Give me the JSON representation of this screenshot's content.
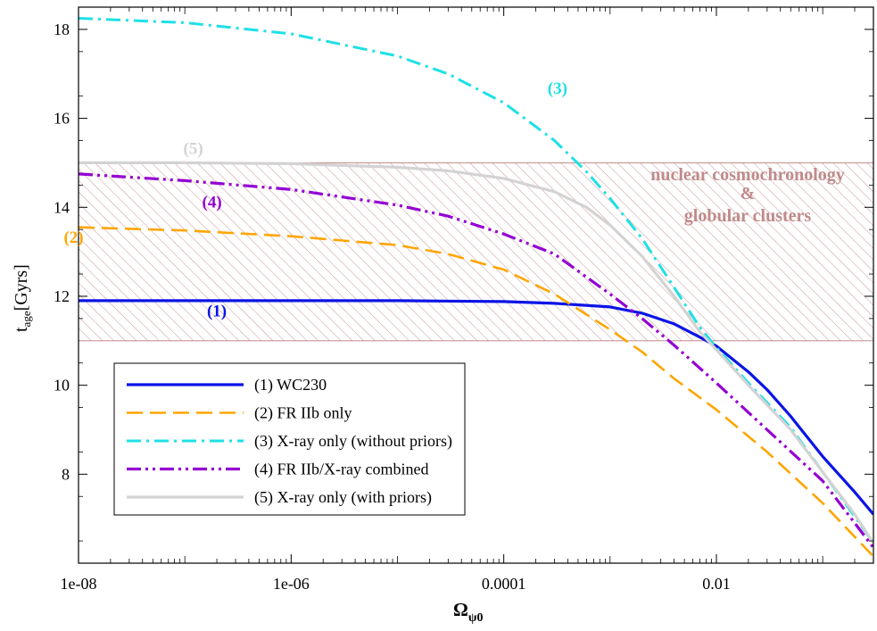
{
  "chart_data": {
    "type": "line",
    "x_scale": "log",
    "xlim": [
      1e-08,
      0.3
    ],
    "ylim": [
      6.0,
      18.5
    ],
    "xlabel": {
      "main": "Ω",
      "sub": "ψ0"
    },
    "ylabel": {
      "main": "t",
      "sub": "age",
      "unit": "[Gyrs]"
    },
    "x_ticks": [
      {
        "value": 1e-08,
        "label": "1e-08"
      },
      {
        "value": 1e-06,
        "label": "1e-06"
      },
      {
        "value": 0.0001,
        "label": "0.0001"
      },
      {
        "value": 0.01,
        "label": "0.01"
      }
    ],
    "y_ticks": [
      8,
      10,
      12,
      14,
      16,
      18
    ],
    "grid": false,
    "band": {
      "y_range": [
        11,
        15
      ],
      "label_lines": [
        "nuclear cosmochronology",
        "&",
        "globular clusters"
      ],
      "color": "#c08a8a"
    },
    "legend": {
      "position": "bottom-left",
      "entries": [
        {
          "label": "(1) WC230",
          "color": "#0a14e6",
          "dash": "solid"
        },
        {
          "label": "(2) FR IIb only",
          "color": "#ffa500",
          "dash": "dash"
        },
        {
          "label": "(3) X-ray only (without priors)",
          "color": "#1ee0e6",
          "dash": "dashdot"
        },
        {
          "label": "(4) FR IIb/X-ray combined",
          "color": "#9400d3",
          "dash": "dashdotdot"
        },
        {
          "label": "(5) X-ray only (with priors)",
          "color": "#d3d3d3",
          "dash": "solid"
        }
      ]
    },
    "series": [
      {
        "curve_label": "(1)",
        "label_at": [
          2e-07,
          11.55
        ],
        "color": "#0a14e6",
        "dash": "solid",
        "points": [
          [
            1e-08,
            11.9
          ],
          [
            1e-06,
            11.9
          ],
          [
            1e-05,
            11.9
          ],
          [
            0.0001,
            11.88
          ],
          [
            0.0003,
            11.84
          ],
          [
            0.001,
            11.76
          ],
          [
            0.002,
            11.62
          ],
          [
            0.004,
            11.38
          ],
          [
            0.007,
            11.08
          ],
          [
            0.01,
            10.88
          ],
          [
            0.02,
            10.3
          ],
          [
            0.03,
            9.9
          ],
          [
            0.05,
            9.3
          ],
          [
            0.1,
            8.4
          ],
          [
            0.2,
            7.6
          ],
          [
            0.3,
            7.1
          ]
        ]
      },
      {
        "curve_label": "(2)",
        "label_at": [
          9e-09,
          13.2
        ],
        "color": "#ffa500",
        "dash": "dash",
        "points": [
          [
            1e-08,
            13.55
          ],
          [
            1e-07,
            13.48
          ],
          [
            1e-06,
            13.35
          ],
          [
            1e-05,
            13.15
          ],
          [
            3e-05,
            12.95
          ],
          [
            0.0001,
            12.6
          ],
          [
            0.0003,
            12.05
          ],
          [
            0.001,
            11.25
          ],
          [
            0.002,
            10.75
          ],
          [
            0.004,
            10.15
          ],
          [
            0.01,
            9.45
          ],
          [
            0.03,
            8.5
          ],
          [
            0.1,
            7.35
          ],
          [
            0.3,
            6.15
          ]
        ]
      },
      {
        "curve_label": "(3)",
        "label_at": [
          0.00032,
          16.55
        ],
        "color": "#1ee0e6",
        "dash": "dashdot",
        "points": [
          [
            1e-08,
            18.25
          ],
          [
            1e-07,
            18.15
          ],
          [
            1e-06,
            17.9
          ],
          [
            1e-05,
            17.4
          ],
          [
            3e-05,
            17.0
          ],
          [
            0.0001,
            16.35
          ],
          [
            0.0003,
            15.5
          ],
          [
            0.0006,
            14.8
          ],
          [
            0.001,
            14.2
          ],
          [
            0.002,
            13.3
          ],
          [
            0.004,
            12.2
          ],
          [
            0.007,
            11.3
          ],
          [
            0.01,
            10.85
          ],
          [
            0.02,
            10.05
          ],
          [
            0.05,
            9.05
          ],
          [
            0.1,
            8.05
          ],
          [
            0.2,
            7.05
          ],
          [
            0.3,
            6.45
          ]
        ]
      },
      {
        "curve_label": "(4)",
        "label_at": [
          1.8e-07,
          14.0
        ],
        "color": "#9400d3",
        "dash": "dashdotdot",
        "points": [
          [
            1e-08,
            14.75
          ],
          [
            1e-07,
            14.6
          ],
          [
            1e-06,
            14.4
          ],
          [
            1e-05,
            14.05
          ],
          [
            3e-05,
            13.8
          ],
          [
            0.0001,
            13.4
          ],
          [
            0.0003,
            12.95
          ],
          [
            0.001,
            12.05
          ],
          [
            0.002,
            11.5
          ],
          [
            0.004,
            10.9
          ],
          [
            0.01,
            10.05
          ],
          [
            0.03,
            9.0
          ],
          [
            0.1,
            7.85
          ],
          [
            0.3,
            6.35
          ]
        ]
      },
      {
        "curve_label": "(5)",
        "label_at": [
          1.2e-07,
          15.2
        ],
        "color": "#d3d3d3",
        "dash": "solid",
        "points": [
          [
            1e-08,
            15.0
          ],
          [
            1e-07,
            15.0
          ],
          [
            1e-06,
            14.98
          ],
          [
            1e-05,
            14.9
          ],
          [
            3e-05,
            14.82
          ],
          [
            0.0001,
            14.65
          ],
          [
            0.0003,
            14.35
          ],
          [
            0.0006,
            14.0
          ],
          [
            0.001,
            13.6
          ],
          [
            0.002,
            12.9
          ],
          [
            0.004,
            12.0
          ],
          [
            0.007,
            11.2
          ],
          [
            0.01,
            10.8
          ],
          [
            0.02,
            10.0
          ],
          [
            0.05,
            9.0
          ],
          [
            0.1,
            8.05
          ],
          [
            0.2,
            7.1
          ],
          [
            0.3,
            6.45
          ]
        ]
      }
    ]
  }
}
